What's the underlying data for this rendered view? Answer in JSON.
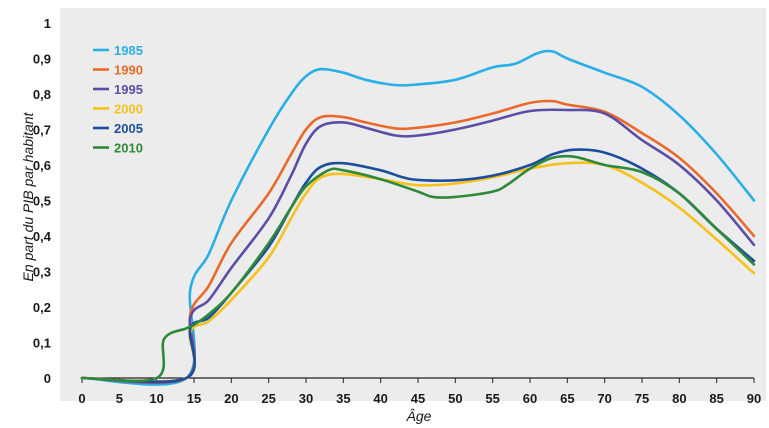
{
  "chart_data": {
    "type": "line",
    "title": "",
    "xlabel": "Âge",
    "ylabel": "En part du PIB par habitant",
    "xlim": [
      0,
      90
    ],
    "ylim": [
      0,
      1
    ],
    "x_ticks": [
      "0",
      "5",
      "10",
      "15",
      "20",
      "25",
      "30",
      "35",
      "40",
      "45",
      "50",
      "55",
      "60",
      "65",
      "70",
      "75",
      "80",
      "85",
      "90"
    ],
    "y_ticks": [
      "0",
      "0,1",
      "0,2",
      "0,3",
      "0,4",
      "0,5",
      "0,6",
      "0,7",
      "0,8",
      "0,9",
      "1"
    ],
    "legend_position": "top-left",
    "grid": false,
    "background": "#ececec",
    "series": [
      {
        "name": "1985",
        "color": "#2aaee6",
        "points": [
          [
            0,
            0
          ],
          [
            14,
            0
          ],
          [
            14.5,
            0.25
          ],
          [
            17,
            0.35
          ],
          [
            20,
            0.5
          ],
          [
            25,
            0.7
          ],
          [
            28,
            0.8
          ],
          [
            30,
            0.85
          ],
          [
            32,
            0.87
          ],
          [
            35,
            0.86
          ],
          [
            38,
            0.84
          ],
          [
            42,
            0.825
          ],
          [
            45,
            0.827
          ],
          [
            50,
            0.84
          ],
          [
            55,
            0.875
          ],
          [
            58,
            0.885
          ],
          [
            61,
            0.915
          ],
          [
            63,
            0.92
          ],
          [
            65,
            0.9
          ],
          [
            70,
            0.86
          ],
          [
            75,
            0.82
          ],
          [
            80,
            0.74
          ],
          [
            85,
            0.63
          ],
          [
            90,
            0.5
          ]
        ]
      },
      {
        "name": "1990",
        "color": "#ea6a2c",
        "points": [
          [
            0,
            0
          ],
          [
            14,
            0
          ],
          [
            14.5,
            0.18
          ],
          [
            17,
            0.26
          ],
          [
            20,
            0.38
          ],
          [
            25,
            0.52
          ],
          [
            28,
            0.63
          ],
          [
            30,
            0.7
          ],
          [
            32,
            0.735
          ],
          [
            35,
            0.735
          ],
          [
            38,
            0.72
          ],
          [
            42,
            0.703
          ],
          [
            45,
            0.705
          ],
          [
            50,
            0.72
          ],
          [
            55,
            0.745
          ],
          [
            60,
            0.775
          ],
          [
            63,
            0.78
          ],
          [
            65,
            0.77
          ],
          [
            70,
            0.75
          ],
          [
            75,
            0.69
          ],
          [
            80,
            0.62
          ],
          [
            85,
            0.52
          ],
          [
            90,
            0.4
          ]
        ]
      },
      {
        "name": "1995",
        "color": "#5a4ea6",
        "points": [
          [
            0,
            0
          ],
          [
            14,
            0
          ],
          [
            14.5,
            0.17
          ],
          [
            17,
            0.22
          ],
          [
            20,
            0.31
          ],
          [
            25,
            0.45
          ],
          [
            28,
            0.57
          ],
          [
            30,
            0.66
          ],
          [
            32,
            0.71
          ],
          [
            35,
            0.72
          ],
          [
            38,
            0.705
          ],
          [
            42,
            0.683
          ],
          [
            45,
            0.683
          ],
          [
            50,
            0.7
          ],
          [
            55,
            0.725
          ],
          [
            60,
            0.752
          ],
          [
            65,
            0.755
          ],
          [
            70,
            0.745
          ],
          [
            75,
            0.67
          ],
          [
            80,
            0.6
          ],
          [
            85,
            0.5
          ],
          [
            90,
            0.375
          ]
        ]
      },
      {
        "name": "2000",
        "color": "#f7c11a",
        "points": [
          [
            0,
            0
          ],
          [
            14,
            0
          ],
          [
            14.5,
            0.13
          ],
          [
            17,
            0.16
          ],
          [
            20,
            0.22
          ],
          [
            25,
            0.34
          ],
          [
            28,
            0.45
          ],
          [
            30,
            0.52
          ],
          [
            32,
            0.565
          ],
          [
            35,
            0.575
          ],
          [
            40,
            0.56
          ],
          [
            45,
            0.543
          ],
          [
            50,
            0.548
          ],
          [
            55,
            0.565
          ],
          [
            60,
            0.59
          ],
          [
            65,
            0.605
          ],
          [
            70,
            0.6
          ],
          [
            75,
            0.55
          ],
          [
            80,
            0.48
          ],
          [
            85,
            0.39
          ],
          [
            90,
            0.295
          ]
        ]
      },
      {
        "name": "2005",
        "color": "#1b4f9c",
        "points": [
          [
            0,
            0
          ],
          [
            14,
            0
          ],
          [
            14.5,
            0.14
          ],
          [
            17,
            0.17
          ],
          [
            20,
            0.24
          ],
          [
            25,
            0.37
          ],
          [
            28,
            0.48
          ],
          [
            30,
            0.55
          ],
          [
            32,
            0.595
          ],
          [
            35,
            0.605
          ],
          [
            40,
            0.585
          ],
          [
            43,
            0.565
          ],
          [
            45,
            0.558
          ],
          [
            50,
            0.557
          ],
          [
            55,
            0.57
          ],
          [
            60,
            0.6
          ],
          [
            63,
            0.63
          ],
          [
            66,
            0.643
          ],
          [
            70,
            0.635
          ],
          [
            75,
            0.59
          ],
          [
            80,
            0.52
          ],
          [
            85,
            0.42
          ],
          [
            90,
            0.33
          ]
        ]
      },
      {
        "name": "2010",
        "color": "#2e8a3a",
        "points": [
          [
            0,
            0
          ],
          [
            10,
            0
          ],
          [
            11,
            0.11
          ],
          [
            14,
            0.14
          ],
          [
            15,
            0.15
          ],
          [
            17,
            0.18
          ],
          [
            20,
            0.24
          ],
          [
            25,
            0.38
          ],
          [
            28,
            0.48
          ],
          [
            30,
            0.54
          ],
          [
            33,
            0.585
          ],
          [
            35,
            0.585
          ],
          [
            40,
            0.56
          ],
          [
            45,
            0.525
          ],
          [
            47,
            0.51
          ],
          [
            50,
            0.51
          ],
          [
            55,
            0.525
          ],
          [
            57,
            0.545
          ],
          [
            60,
            0.59
          ],
          [
            63,
            0.62
          ],
          [
            66,
            0.623
          ],
          [
            70,
            0.6
          ],
          [
            75,
            0.58
          ],
          [
            80,
            0.52
          ],
          [
            85,
            0.42
          ],
          [
            90,
            0.32
          ]
        ]
      }
    ]
  }
}
